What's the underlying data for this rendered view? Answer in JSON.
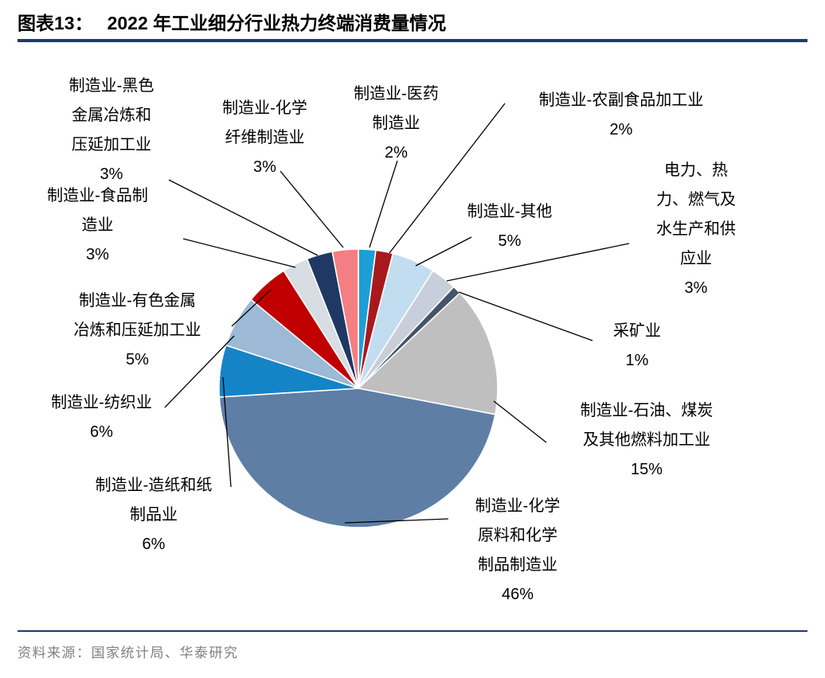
{
  "header": {
    "title_prefix": "图表13：",
    "title": "2022 年工业细分行业热力终端消费量情况"
  },
  "footer": {
    "source": "资料来源：国家统计局、华泰研究"
  },
  "chart_data": {
    "type": "pie",
    "title": "2022 年工业细分行业热力终端消费量情况",
    "unit": "%",
    "legend_position": "none",
    "start_angle": "12 o'clock",
    "direction": "clockwise",
    "total": 100,
    "segments": [
      {
        "id": "pharma",
        "name": "制造业-医药制造业",
        "value": 2,
        "value_label": "2%",
        "color": "#1e9ed6",
        "label_lines": [
          "制造业-医药",
          "制造业"
        ]
      },
      {
        "id": "agri-food",
        "name": "制造业-农副食品加工业",
        "value": 2,
        "value_label": "2%",
        "color": "#a8191e",
        "label_lines": [
          "制造业-农副食品加工业"
        ]
      },
      {
        "id": "other-mfg",
        "name": "制造业-其他",
        "value": 5,
        "value_label": "5%",
        "color": "#c2ddf0",
        "label_lines": [
          "制造业-其他"
        ]
      },
      {
        "id": "utilities",
        "name": "电力、热力、燃气及水生产和供应业",
        "value": 3,
        "value_label": "3%",
        "color": "#c9cfda",
        "label_lines": [
          "电力、热",
          "力、燃气及",
          "水生产和供",
          "应业"
        ]
      },
      {
        "id": "mining",
        "name": "采矿业",
        "value": 1,
        "value_label": "1%",
        "color": "#44546a",
        "label_lines": [
          "采矿业"
        ]
      },
      {
        "id": "petroleum",
        "name": "制造业-石油、煤炭及其他燃料加工业",
        "value": 15,
        "value_label": "15%",
        "color": "#bfbfbf",
        "label_lines": [
          "制造业-石油、煤炭",
          "及其他燃料加工业"
        ]
      },
      {
        "id": "chemical",
        "name": "制造业-化学原料和化学制品制造业",
        "value": 46,
        "value_label": "46%",
        "color": "#5e7ea6",
        "label_lines": [
          "制造业-化学",
          "原料和化学",
          "制品制造业"
        ]
      },
      {
        "id": "paper",
        "name": "制造业-造纸和纸制品业",
        "value": 6,
        "value_label": "6%",
        "color": "#1484c6",
        "label_lines": [
          "制造业-造纸和纸",
          "制品业"
        ]
      },
      {
        "id": "textile",
        "name": "制造业-纺织业",
        "value": 6,
        "value_label": "6%",
        "color": "#9cb9d6",
        "label_lines": [
          "制造业-纺织业"
        ]
      },
      {
        "id": "nonferrous",
        "name": "制造业-有色金属冶炼和压延加工业",
        "value": 5,
        "value_label": "5%",
        "color": "#c00000",
        "label_lines": [
          "制造业-有色金属",
          "冶炼和压延加工业"
        ]
      },
      {
        "id": "food",
        "name": "制造业-食品制造业",
        "value": 3,
        "value_label": "3%",
        "color": "#d8dde4",
        "label_lines": [
          "制造业-食品制",
          "造业"
        ]
      },
      {
        "id": "ferrous",
        "name": "制造业-黑色金属冶炼和压延加工业",
        "value": 3,
        "value_label": "3%",
        "color": "#1f3864",
        "label_lines": [
          "制造业-黑色",
          "金属冶炼和",
          "压延加工业"
        ]
      },
      {
        "id": "chem-fiber",
        "name": "制造业-化学纤维制造业",
        "value": 3,
        "value_label": "3%",
        "color": "#f57e82",
        "label_lines": [
          "制造业-化学",
          "纤维制造业"
        ]
      }
    ]
  }
}
